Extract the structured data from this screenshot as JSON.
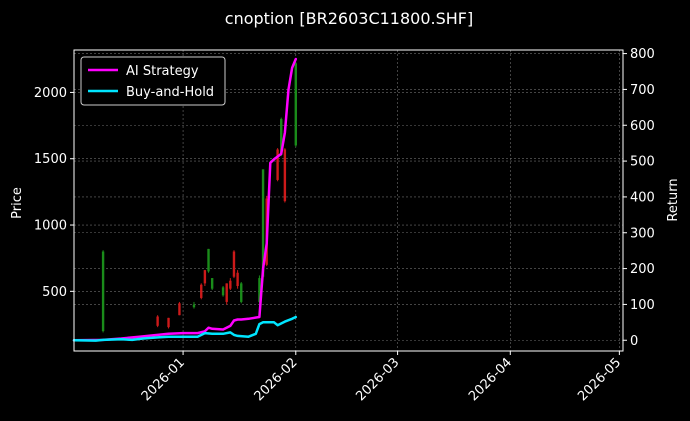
{
  "chart_data": {
    "type": "line",
    "title": "cnoption [BR2603C11800.SHF]",
    "ylabel_left": "Price",
    "ylabel_right": "Return",
    "x_ticks": [
      "2026-01",
      "2026-02",
      "2026-03",
      "2026-04",
      "2026-05"
    ],
    "x_tick_dates": [
      "2026-01-01",
      "2026-02-01",
      "2026-03-01",
      "2026-04-01",
      "2026-05-01"
    ],
    "xlim": [
      "2025-12-02",
      "2026-05-02"
    ],
    "y_left_ticks": [
      500,
      1000,
      1500,
      2000
    ],
    "y_left_lim": [
      50,
      2320
    ],
    "y_right_ticks": [
      0,
      100,
      200,
      300,
      400,
      500,
      600,
      700,
      800
    ],
    "y_right_lim": [
      -30,
      810
    ],
    "grid": true,
    "legend_position": "top-left",
    "background": "#000000",
    "foreground": "#ffffff",
    "series": [
      {
        "name": "AI Strategy",
        "axis": "right",
        "color": "#ff00ff",
        "x": [
          "2025-12-02",
          "2025-12-10",
          "2025-12-15",
          "2025-12-20",
          "2025-12-25",
          "2025-12-28",
          "2026-01-01",
          "2026-01-05",
          "2026-01-07",
          "2026-01-08",
          "2026-01-09",
          "2026-01-12",
          "2026-01-14",
          "2026-01-15",
          "2026-01-16",
          "2026-01-17",
          "2026-01-19",
          "2026-01-22",
          "2026-01-23",
          "2026-01-24",
          "2026-01-25",
          "2026-01-26",
          "2026-01-28",
          "2026-01-29",
          "2026-01-30",
          "2026-01-31",
          "2026-02-01"
        ],
        "values": [
          0,
          1,
          5,
          10,
          15,
          18,
          20,
          20,
          25,
          35,
          32,
          30,
          40,
          55,
          58,
          58,
          60,
          65,
          200,
          270,
          495,
          505,
          520,
          580,
          700,
          760,
          785
        ]
      },
      {
        "name": "Buy-and-Hold",
        "axis": "right",
        "color": "#00e5ff",
        "x": [
          "2025-12-02",
          "2025-12-08",
          "2025-12-10",
          "2025-12-15",
          "2025-12-18",
          "2025-12-21",
          "2025-12-25",
          "2025-12-28",
          "2026-01-01",
          "2026-01-05",
          "2026-01-07",
          "2026-01-09",
          "2026-01-12",
          "2026-01-14",
          "2026-01-15",
          "2026-01-16",
          "2026-01-19",
          "2026-01-21",
          "2026-01-22",
          "2026-01-23",
          "2026-01-26",
          "2026-01-27",
          "2026-01-29",
          "2026-01-31",
          "2026-02-01"
        ],
        "values": [
          0,
          -1,
          1,
          3,
          1,
          5,
          8,
          10,
          10,
          10,
          20,
          18,
          18,
          22,
          15,
          12,
          10,
          18,
          45,
          50,
          50,
          42,
          52,
          60,
          65
        ]
      }
    ],
    "candles": [
      {
        "date": "2025-12-10",
        "open": 200,
        "close": 800,
        "high": 810,
        "low": 190,
        "dir": "up"
      },
      {
        "date": "2025-12-25",
        "open": 310,
        "close": 240,
        "high": 320,
        "low": 230,
        "dir": "down"
      },
      {
        "date": "2025-12-28",
        "open": 300,
        "close": 230,
        "high": 300,
        "low": 220,
        "dir": "down"
      },
      {
        "date": "2025-12-31",
        "open": 410,
        "close": 320,
        "high": 420,
        "low": 320,
        "dir": "down"
      },
      {
        "date": "2026-01-04",
        "open": 380,
        "close": 400,
        "high": 420,
        "low": 370,
        "dir": "up"
      },
      {
        "date": "2026-01-06",
        "open": 550,
        "close": 450,
        "high": 560,
        "low": 440,
        "dir": "down"
      },
      {
        "date": "2026-01-07",
        "open": 660,
        "close": 560,
        "high": 660,
        "low": 540,
        "dir": "down"
      },
      {
        "date": "2026-01-08",
        "open": 650,
        "close": 820,
        "high": 820,
        "low": 640,
        "dir": "up"
      },
      {
        "date": "2026-01-09",
        "open": 520,
        "close": 600,
        "high": 600,
        "low": 510,
        "dir": "up"
      },
      {
        "date": "2026-01-12",
        "open": 470,
        "close": 530,
        "high": 540,
        "low": 460,
        "dir": "up"
      },
      {
        "date": "2026-01-13",
        "open": 560,
        "close": 420,
        "high": 560,
        "low": 400,
        "dir": "down"
      },
      {
        "date": "2026-01-14",
        "open": 580,
        "close": 520,
        "high": 600,
        "low": 510,
        "dir": "down"
      },
      {
        "date": "2026-01-15",
        "open": 800,
        "close": 610,
        "high": 810,
        "low": 600,
        "dir": "down"
      },
      {
        "date": "2026-01-16",
        "open": 640,
        "close": 540,
        "high": 660,
        "low": 520,
        "dir": "down"
      },
      {
        "date": "2026-01-17",
        "open": 420,
        "close": 560,
        "high": 570,
        "low": 410,
        "dir": "up"
      },
      {
        "date": "2026-01-22",
        "open": 420,
        "close": 600,
        "high": 620,
        "low": 410,
        "dir": "up"
      },
      {
        "date": "2026-01-23",
        "open": 610,
        "close": 1420,
        "high": 1420,
        "low": 600,
        "dir": "up"
      },
      {
        "date": "2026-01-24",
        "open": 1200,
        "close": 700,
        "high": 1220,
        "low": 690,
        "dir": "down"
      },
      {
        "date": "2026-01-27",
        "open": 1570,
        "close": 1340,
        "high": 1580,
        "low": 1330,
        "dir": "down"
      },
      {
        "date": "2026-01-28",
        "open": 1530,
        "close": 1800,
        "high": 1810,
        "low": 1520,
        "dir": "up"
      },
      {
        "date": "2026-01-29",
        "open": 1570,
        "close": 1180,
        "high": 1580,
        "low": 1170,
        "dir": "down"
      },
      {
        "date": "2026-02-01",
        "open": 1600,
        "close": 2220,
        "high": 2230,
        "low": 1590,
        "dir": "up"
      }
    ],
    "candle_colors": {
      "up": "#1a8c1a",
      "down": "#cc1a1a"
    }
  }
}
